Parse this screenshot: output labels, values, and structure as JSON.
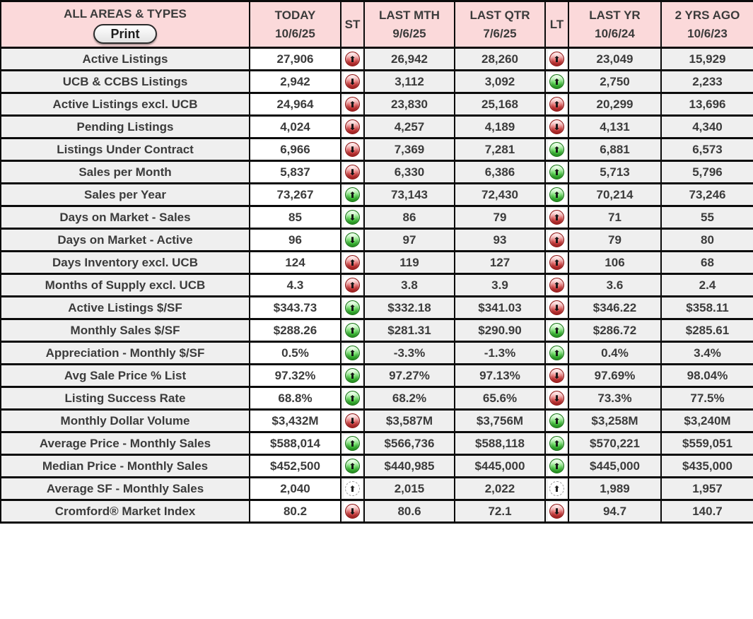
{
  "title_cell": {
    "title": "ALL AREAS & TYPES",
    "print_label": "Print"
  },
  "columns": [
    {
      "id": "today",
      "label": "TODAY",
      "date": "10/6/25"
    },
    {
      "id": "st",
      "label": "ST",
      "date": ""
    },
    {
      "id": "last_mth",
      "label": "LAST MTH",
      "date": "9/6/25"
    },
    {
      "id": "last_qtr",
      "label": "LAST QTR",
      "date": "7/6/25"
    },
    {
      "id": "lt",
      "label": "LT",
      "date": ""
    },
    {
      "id": "last_yr",
      "label": "LAST YR",
      "date": "10/6/24"
    },
    {
      "id": "two_yrs_ago",
      "label": "2 YRS AGO",
      "date": "10/6/23"
    }
  ],
  "rows": [
    {
      "label": "Active Listings",
      "today": "27,906",
      "st": "up-red",
      "last_mth": "26,942",
      "last_qtr": "28,260",
      "lt": "up-red",
      "last_yr": "23,049",
      "two_yrs_ago": "15,929"
    },
    {
      "label": "UCB & CCBS Listings",
      "today": "2,942",
      "st": "down-red",
      "last_mth": "3,112",
      "last_qtr": "3,092",
      "lt": "up-green",
      "last_yr": "2,750",
      "two_yrs_ago": "2,233"
    },
    {
      "label": "Active Listings excl. UCB",
      "today": "24,964",
      "st": "up-red",
      "last_mth": "23,830",
      "last_qtr": "25,168",
      "lt": "up-red",
      "last_yr": "20,299",
      "two_yrs_ago": "13,696"
    },
    {
      "label": "Pending Listings",
      "today": "4,024",
      "st": "down-red",
      "last_mth": "4,257",
      "last_qtr": "4,189",
      "lt": "down-red",
      "last_yr": "4,131",
      "two_yrs_ago": "4,340"
    },
    {
      "label": "Listings Under Contract",
      "today": "6,966",
      "st": "down-red",
      "last_mth": "7,369",
      "last_qtr": "7,281",
      "lt": "up-green",
      "last_yr": "6,881",
      "two_yrs_ago": "6,573"
    },
    {
      "label": "Sales per Month",
      "today": "5,837",
      "st": "down-red",
      "last_mth": "6,330",
      "last_qtr": "6,386",
      "lt": "up-green",
      "last_yr": "5,713",
      "two_yrs_ago": "5,796"
    },
    {
      "label": "Sales per Year",
      "today": "73,267",
      "st": "up-green",
      "last_mth": "73,143",
      "last_qtr": "72,430",
      "lt": "up-green",
      "last_yr": "70,214",
      "two_yrs_ago": "73,246"
    },
    {
      "label": "Days on Market - Sales",
      "today": "85",
      "st": "down-green",
      "last_mth": "86",
      "last_qtr": "79",
      "lt": "up-red",
      "last_yr": "71",
      "two_yrs_ago": "55"
    },
    {
      "label": "Days on Market - Active",
      "today": "96",
      "st": "down-green",
      "last_mth": "97",
      "last_qtr": "93",
      "lt": "up-red",
      "last_yr": "79",
      "two_yrs_ago": "80"
    },
    {
      "label": "Days Inventory excl. UCB",
      "today": "124",
      "st": "up-red",
      "last_mth": "119",
      "last_qtr": "127",
      "lt": "up-red",
      "last_yr": "106",
      "two_yrs_ago": "68"
    },
    {
      "label": "Months of Supply excl. UCB",
      "today": "4.3",
      "st": "up-red",
      "last_mth": "3.8",
      "last_qtr": "3.9",
      "lt": "up-red",
      "last_yr": "3.6",
      "two_yrs_ago": "2.4"
    },
    {
      "label": "Active Listings $/SF",
      "today": "$343.73",
      "st": "up-green",
      "last_mth": "$332.18",
      "last_qtr": "$341.03",
      "lt": "down-red",
      "last_yr": "$346.22",
      "two_yrs_ago": "$358.11"
    },
    {
      "label": "Monthly Sales $/SF",
      "today": "$288.26",
      "st": "up-green",
      "last_mth": "$281.31",
      "last_qtr": "$290.90",
      "lt": "up-green",
      "last_yr": "$286.72",
      "two_yrs_ago": "$285.61"
    },
    {
      "label": "Appreciation - Monthly $/SF",
      "today": "0.5%",
      "st": "up-green",
      "last_mth": "-3.3%",
      "last_qtr": "-1.3%",
      "lt": "up-green",
      "last_yr": "0.4%",
      "two_yrs_ago": "3.4%"
    },
    {
      "label": "Avg Sale Price % List",
      "today": "97.32%",
      "st": "up-green",
      "last_mth": "97.27%",
      "last_qtr": "97.13%",
      "lt": "down-red",
      "last_yr": "97.69%",
      "two_yrs_ago": "98.04%"
    },
    {
      "label": "Listing Success Rate",
      "today": "68.8%",
      "st": "up-green",
      "last_mth": "68.2%",
      "last_qtr": "65.6%",
      "lt": "down-red",
      "last_yr": "73.3%",
      "two_yrs_ago": "77.5%"
    },
    {
      "label": "Monthly Dollar Volume",
      "today": "$3,432M",
      "st": "down-red",
      "last_mth": "$3,587M",
      "last_qtr": "$3,756M",
      "lt": "up-green",
      "last_yr": "$3,258M",
      "two_yrs_ago": "$3,240M"
    },
    {
      "label": "Average Price - Monthly Sales",
      "today": "$588,014",
      "st": "up-green",
      "last_mth": "$566,736",
      "last_qtr": "$588,118",
      "lt": "up-green",
      "last_yr": "$570,221",
      "two_yrs_ago": "$559,051"
    },
    {
      "label": "Median Price - Monthly Sales",
      "today": "$452,500",
      "st": "up-green",
      "last_mth": "$440,985",
      "last_qtr": "$445,000",
      "lt": "up-green",
      "last_yr": "$445,000",
      "two_yrs_ago": "$435,000"
    },
    {
      "label": "Average SF - Monthly Sales",
      "today": "2,040",
      "st": "up-neutral",
      "last_mth": "2,015",
      "last_qtr": "2,022",
      "lt": "up-neutral",
      "last_yr": "1,989",
      "two_yrs_ago": "1,957"
    },
    {
      "label": "Cromford® Market Index",
      "today": "80.2",
      "st": "down-red",
      "last_mth": "80.6",
      "last_qtr": "72.1",
      "lt": "down-red",
      "last_yr": "94.7",
      "two_yrs_ago": "140.7"
    }
  ],
  "icons": {
    "up-red": "glossy red circle with black up arrow",
    "down-red": "glossy red circle with black down arrow",
    "up-green": "glossy green circle with black up arrow",
    "down-green": "glossy green circle with black down arrow",
    "up-neutral": "white dashed circle with black up arrow"
  },
  "colors": {
    "header_bg": "#fbd9da",
    "cell_gray_bg": "#efefef",
    "today_bg": "#ffffff",
    "border": "#0b0b0b",
    "text": "#3b3b3b",
    "icon_red": "#e13c3c",
    "icon_green": "#42d23b"
  }
}
